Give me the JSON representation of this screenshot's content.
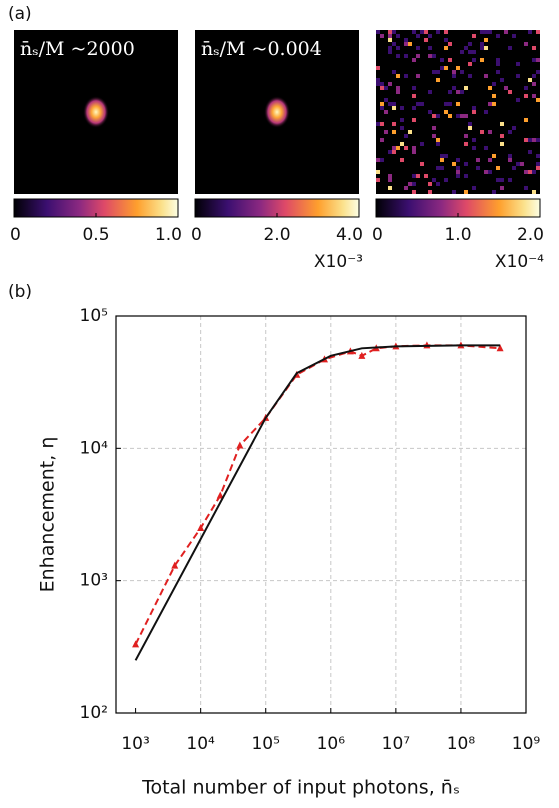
{
  "panel_a": {
    "label": "(a)",
    "images": [
      {
        "title": "n̄ₛ/M ~2000",
        "colorbar": {
          "lim": [
            0,
            1
          ],
          "ticks": [
            0,
            0.5,
            {
              "value": 1,
              "label": "1.0"
            }
          ]
        }
      },
      {
        "title": "n̄ₛ/M ~0.004",
        "colorbar": {
          "lim": [
            0,
            4
          ],
          "ticks": [
            0,
            {
              "value": 2,
              "label": "2.0"
            },
            {
              "value": 4,
              "label": "4.0"
            }
          ],
          "scale_label": "X10⁻³"
        }
      },
      {
        "colorbar": {
          "lim": [
            0,
            2
          ],
          "ticks": [
            0,
            {
              "value": 1,
              "label": "1.0"
            },
            {
              "value": 2,
              "label": "2.0"
            }
          ],
          "scale_label": "X10⁻⁴"
        }
      }
    ]
  },
  "chart_data": {
    "type": "line",
    "panel_label": "(b)",
    "x_label": "Total number of input photons, n̄ₛ",
    "y_label": "Enhancement, η",
    "log_x": true,
    "log_y": true,
    "grid": true,
    "xlim": [
      500,
      1000000000
    ],
    "ylim": [
      100,
      100000
    ],
    "xticks": [
      {
        "value": 1000,
        "label": "10³"
      },
      {
        "value": 10000,
        "label": "10⁴"
      },
      {
        "value": 100000,
        "label": "10⁵"
      },
      {
        "value": 1000000,
        "label": "10⁶"
      },
      {
        "value": 10000000,
        "label": "10⁷"
      },
      {
        "value": 100000000,
        "label": "10⁸"
      },
      {
        "value": 1000000000,
        "label": "10⁹"
      }
    ],
    "yticks": [
      {
        "value": 100,
        "label": "10²"
      },
      {
        "value": 1000,
        "label": "10³"
      },
      {
        "value": 10000,
        "label": "10⁴"
      },
      {
        "value": 100000,
        "label": "10⁵"
      }
    ],
    "series": [
      {
        "color": "#e02020",
        "dash": true,
        "markers": true,
        "x": [
          1000,
          4000,
          10000,
          20000,
          40000,
          100000,
          300000,
          800000,
          2000000,
          3000000,
          5000000,
          10000000,
          30000000,
          100000000,
          400000000
        ],
        "values": [
          330,
          1300,
          2500,
          4400,
          10500,
          17000,
          36000,
          47000,
          54000,
          50000,
          57000,
          59000,
          60000,
          60000,
          57000
        ]
      },
      {
        "color": "#111111",
        "dash": false,
        "markers": false,
        "x": [
          1000,
          100000,
          300000,
          1000000,
          3000000,
          10000000,
          100000000,
          400000000
        ],
        "values": [
          250,
          17000,
          37000,
          50000,
          57000,
          59000,
          60000,
          60000
        ]
      }
    ]
  }
}
